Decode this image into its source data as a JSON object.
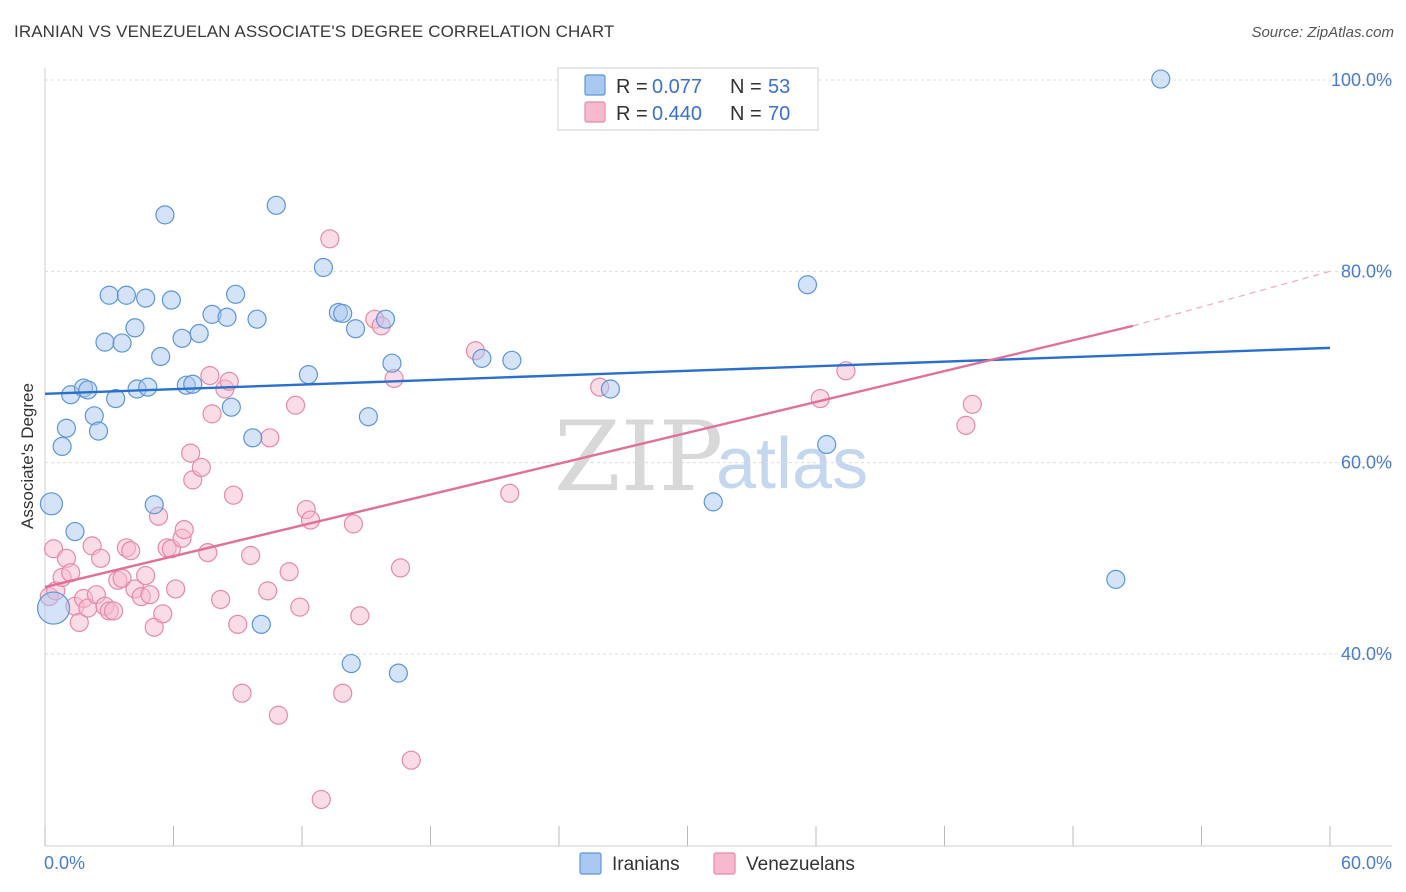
{
  "header": {
    "title": "IRANIAN VS VENEZUELAN ASSOCIATE'S DEGREE CORRELATION CHART",
    "source": "Source: ZipAtlas.com"
  },
  "watermark": {
    "zip": "ZIP",
    "atlas": "atlas"
  },
  "legend": {
    "rows": [
      {
        "r_label": "R = ",
        "r_value": "0.077",
        "n_label": "N = ",
        "n_value": "53"
      },
      {
        "r_label": "R = ",
        "r_value": "0.440",
        "n_label": "N = ",
        "n_value": "70"
      }
    ]
  },
  "bottom_legend": [
    {
      "label": "Iranians"
    },
    {
      "label": "Venezuelans"
    }
  ],
  "colors": {
    "iranian_fill": "#a9c8f0",
    "iranian_stroke": "#5d95d8",
    "iranian_line": "#2a6fcc",
    "venezuelan_fill": "#f6b9cd",
    "venezuelan_stroke": "#e58aa8",
    "venezuelan_line": "#e0709a",
    "axis_label": "#4a7bd0",
    "grid": "#dddddd"
  },
  "chart_data": {
    "type": "scatter",
    "title": "IRANIAN VS VENEZUELAN ASSOCIATE'S DEGREE CORRELATION CHART",
    "xlabel": "",
    "ylabel": "Associate's Degree",
    "xlim": [
      0,
      60
    ],
    "ylim": [
      20,
      102
    ],
    "x_tick_labels": [
      "0.0%",
      "60.0%"
    ],
    "y_ticks": [
      40,
      60,
      80,
      100
    ],
    "y_tick_labels": [
      "40.0%",
      "60.0%",
      "80.0%",
      "100.0%"
    ],
    "grid": true,
    "series": [
      {
        "name": "Iranians",
        "r": 0.077,
        "n": 53,
        "trend": {
          "x0": 0,
          "y0": 67.2,
          "x1": 60,
          "y1": 72.0
        },
        "points": [
          [
            0.3,
            55.7
          ],
          [
            0.4,
            44.8
          ],
          [
            0.8,
            61.7
          ],
          [
            1.0,
            63.6
          ],
          [
            1.2,
            67.1
          ],
          [
            1.4,
            52.8
          ],
          [
            1.8,
            67.8
          ],
          [
            2.0,
            67.6
          ],
          [
            2.3,
            64.9
          ],
          [
            2.5,
            63.3
          ],
          [
            2.8,
            72.6
          ],
          [
            3.0,
            77.5
          ],
          [
            3.3,
            66.7
          ],
          [
            3.6,
            72.5
          ],
          [
            3.8,
            77.5
          ],
          [
            4.2,
            74.1
          ],
          [
            4.3,
            67.7
          ],
          [
            4.7,
            77.2
          ],
          [
            4.8,
            67.9
          ],
          [
            5.1,
            55.6
          ],
          [
            5.4,
            71.1
          ],
          [
            5.6,
            85.9
          ],
          [
            5.9,
            77.0
          ],
          [
            6.4,
            73.0
          ],
          [
            6.6,
            68.1
          ],
          [
            6.9,
            68.2
          ],
          [
            7.2,
            73.5
          ],
          [
            7.8,
            75.5
          ],
          [
            8.5,
            75.2
          ],
          [
            8.7,
            65.8
          ],
          [
            8.9,
            77.6
          ],
          [
            9.7,
            62.6
          ],
          [
            9.9,
            75.0
          ],
          [
            10.1,
            43.1
          ],
          [
            10.8,
            86.9
          ],
          [
            12.3,
            69.2
          ],
          [
            13.0,
            80.4
          ],
          [
            13.7,
            75.7
          ],
          [
            13.9,
            75.6
          ],
          [
            14.3,
            39.0
          ],
          [
            14.5,
            74.0
          ],
          [
            15.1,
            64.8
          ],
          [
            15.9,
            75.0
          ],
          [
            16.2,
            70.4
          ],
          [
            16.5,
            38.0
          ],
          [
            20.4,
            70.9
          ],
          [
            21.8,
            70.7
          ],
          [
            26.4,
            67.7
          ],
          [
            31.2,
            55.9
          ],
          [
            35.6,
            78.6
          ],
          [
            36.5,
            61.9
          ],
          [
            50.0,
            47.8
          ],
          [
            52.1,
            100.1
          ]
        ]
      },
      {
        "name": "Venezuelans",
        "r": 0.44,
        "n": 70,
        "trend": {
          "x0": 0,
          "y0": 47.0,
          "x1": 50.8,
          "y1": 74.3,
          "dash_x1": 60,
          "dash_y1": 80.0
        },
        "points": [
          [
            0.2,
            46.0
          ],
          [
            0.4,
            51.0
          ],
          [
            0.5,
            46.6
          ],
          [
            0.8,
            48.0
          ],
          [
            1.0,
            50.0
          ],
          [
            1.2,
            48.5
          ],
          [
            1.4,
            45.0
          ],
          [
            1.6,
            43.3
          ],
          [
            1.8,
            45.8
          ],
          [
            2.0,
            44.8
          ],
          [
            2.2,
            51.3
          ],
          [
            2.4,
            46.2
          ],
          [
            2.6,
            50.0
          ],
          [
            2.8,
            45.0
          ],
          [
            3.0,
            44.5
          ],
          [
            3.2,
            44.5
          ],
          [
            3.4,
            47.7
          ],
          [
            3.6,
            47.9
          ],
          [
            3.8,
            51.1
          ],
          [
            4.0,
            50.8
          ],
          [
            4.2,
            46.8
          ],
          [
            4.5,
            46.0
          ],
          [
            4.7,
            48.2
          ],
          [
            4.9,
            46.2
          ],
          [
            5.1,
            42.8
          ],
          [
            5.3,
            54.4
          ],
          [
            5.5,
            44.2
          ],
          [
            5.7,
            51.1
          ],
          [
            5.9,
            51.0
          ],
          [
            6.1,
            46.8
          ],
          [
            6.4,
            52.1
          ],
          [
            6.5,
            53.0
          ],
          [
            6.8,
            61.0
          ],
          [
            6.9,
            58.2
          ],
          [
            7.3,
            59.5
          ],
          [
            7.6,
            50.6
          ],
          [
            7.7,
            69.1
          ],
          [
            7.8,
            65.1
          ],
          [
            8.2,
            45.7
          ],
          [
            8.4,
            67.7
          ],
          [
            8.6,
            68.5
          ],
          [
            8.8,
            56.6
          ],
          [
            9.0,
            43.1
          ],
          [
            9.2,
            35.9
          ],
          [
            9.6,
            50.3
          ],
          [
            10.4,
            46.6
          ],
          [
            10.5,
            62.6
          ],
          [
            10.9,
            33.6
          ],
          [
            11.4,
            48.6
          ],
          [
            11.7,
            66.0
          ],
          [
            11.9,
            44.9
          ],
          [
            12.2,
            55.1
          ],
          [
            12.4,
            54.0
          ],
          [
            12.9,
            24.8
          ],
          [
            13.3,
            83.4
          ],
          [
            13.9,
            35.9
          ],
          [
            14.4,
            53.6
          ],
          [
            14.7,
            44.0
          ],
          [
            15.4,
            75.0
          ],
          [
            15.7,
            74.3
          ],
          [
            16.3,
            68.8
          ],
          [
            16.6,
            49.0
          ],
          [
            17.1,
            28.9
          ],
          [
            20.1,
            71.7
          ],
          [
            21.7,
            56.8
          ],
          [
            25.9,
            67.9
          ],
          [
            36.2,
            66.7
          ],
          [
            37.4,
            69.6
          ],
          [
            43.0,
            63.9
          ],
          [
            43.3,
            66.1
          ]
        ]
      }
    ]
  }
}
